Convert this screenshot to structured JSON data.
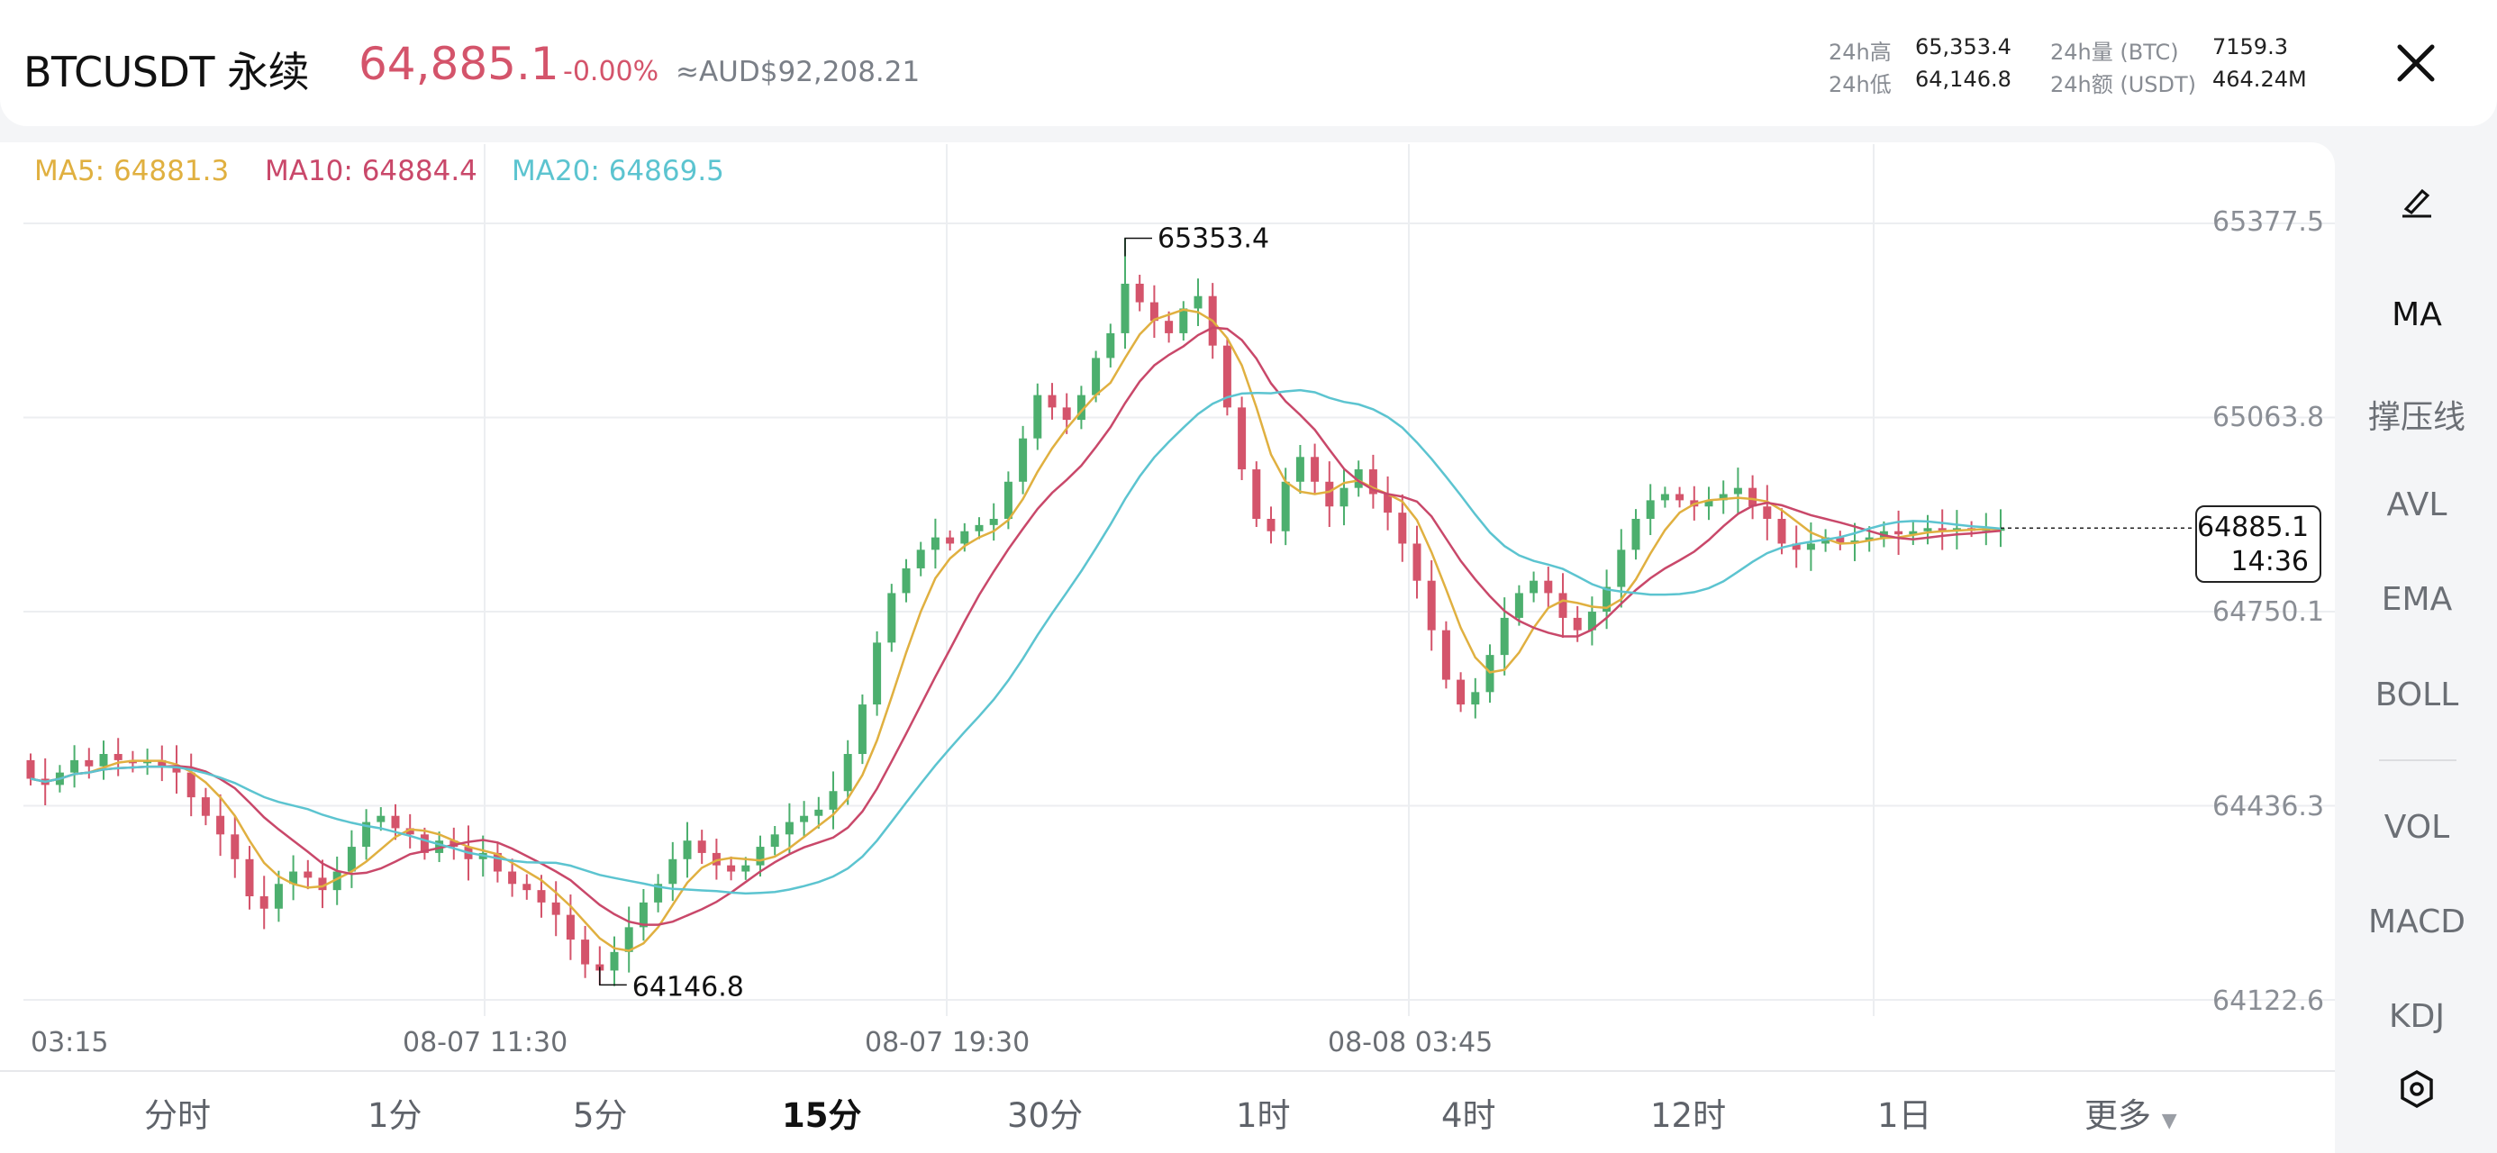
{
  "header": {
    "symbol": "BTCUSDT 永续",
    "price": "64,885.1",
    "change_pct": "-0.00%",
    "aud_price": "≈AUD$92,208.21",
    "stats": [
      {
        "label": "24h高",
        "value": "65,353.4"
      },
      {
        "label": "24h低",
        "value": "64,146.8"
      },
      {
        "label": "24h量 (BTC)",
        "value": "7159.3"
      },
      {
        "label": "24h额 (USDT)",
        "value": "464.24M"
      }
    ],
    "close_icon": "close-icon"
  },
  "ma_legend": [
    {
      "label": "MA5: 64881.3",
      "color": "#e0b040"
    },
    {
      "label": "MA10: 64884.4",
      "color": "#c9486a"
    },
    {
      "label": "MA20: 64869.5",
      "color": "#5cc4d0"
    }
  ],
  "chart": {
    "y_labels": [
      "65377.5",
      "65063.8",
      "64750.1",
      "64436.3",
      "64122.6"
    ],
    "x_labels": [
      "03:15",
      "08-07 11:30",
      "08-07 19:30",
      "08-08 03:45"
    ],
    "high_label": "65353.4",
    "low_label": "64146.8",
    "current_price": "64885.1",
    "countdown": "14:36",
    "up_color": "#4caf6e",
    "down_color": "#d4546b"
  },
  "chart_data": {
    "type": "candlestick",
    "ylim": [
      64122.6,
      65377.5
    ],
    "y_ticks": [
      65377.5,
      65063.8,
      64750.1,
      64436.3,
      64122.6
    ],
    "x_ticks": [
      "03:15",
      "08-07 11:30",
      "08-07 19:30",
      "08-08 03:45"
    ],
    "interval": "15m",
    "high": 65353.4,
    "low": 64146.8,
    "last": 64885.1,
    "close": [
      64480,
      64470,
      64490,
      64510,
      64500,
      64520,
      64510,
      64505,
      64510,
      64500,
      64490,
      64450,
      64420,
      64390,
      64350,
      64290,
      64270,
      64310,
      64330,
      64320,
      64300,
      64330,
      64370,
      64410,
      64420,
      64400,
      64390,
      64360,
      64380,
      64370,
      64350,
      64360,
      64330,
      64310,
      64300,
      64280,
      64260,
      64220,
      64180,
      64170,
      64200,
      64240,
      64280,
      64310,
      64350,
      64380,
      64360,
      64340,
      64330,
      64340,
      64370,
      64390,
      64410,
      64420,
      64430,
      64460,
      64520,
      64600,
      64700,
      64780,
      64820,
      64850,
      64870,
      64860,
      64880,
      64890,
      64900,
      64960,
      65030,
      65100,
      65080,
      65060,
      65100,
      65160,
      65200,
      65280,
      65250,
      65220,
      65200,
      65240,
      65260,
      65180,
      65080,
      64980,
      64900,
      64880,
      64960,
      65000,
      64960,
      64920,
      64950,
      64980,
      64940,
      64910,
      64860,
      64800,
      64720,
      64640,
      64600,
      64620,
      64680,
      64740,
      64780,
      64800,
      64780,
      64740,
      64720,
      64750,
      64790,
      64850,
      64900,
      64930,
      64940,
      64930,
      64920,
      64930,
      64940,
      64950,
      64920,
      64900,
      64860,
      64850,
      64860,
      64870,
      64860,
      64865,
      64870,
      64880,
      64875,
      64880,
      64885,
      64880,
      64885,
      64882,
      64885,
      64885.1
    ],
    "series": [
      {
        "name": "MA5",
        "last": 64881.3
      },
      {
        "name": "MA10",
        "last": 64884.4
      },
      {
        "name": "MA20",
        "last": 64869.5
      }
    ]
  },
  "rail": {
    "items": [
      "MA",
      "撑压线",
      "AVL",
      "EMA",
      "BOLL",
      "VOL",
      "MACD",
      "KDJ"
    ],
    "edit_icon": "edit-pen-icon",
    "settings_icon": "settings-icon"
  },
  "timeframes": {
    "items": [
      "分时",
      "1分",
      "5分",
      "15分",
      "30分",
      "1时",
      "4时",
      "12时",
      "1日",
      "更多"
    ],
    "active": "15分"
  }
}
